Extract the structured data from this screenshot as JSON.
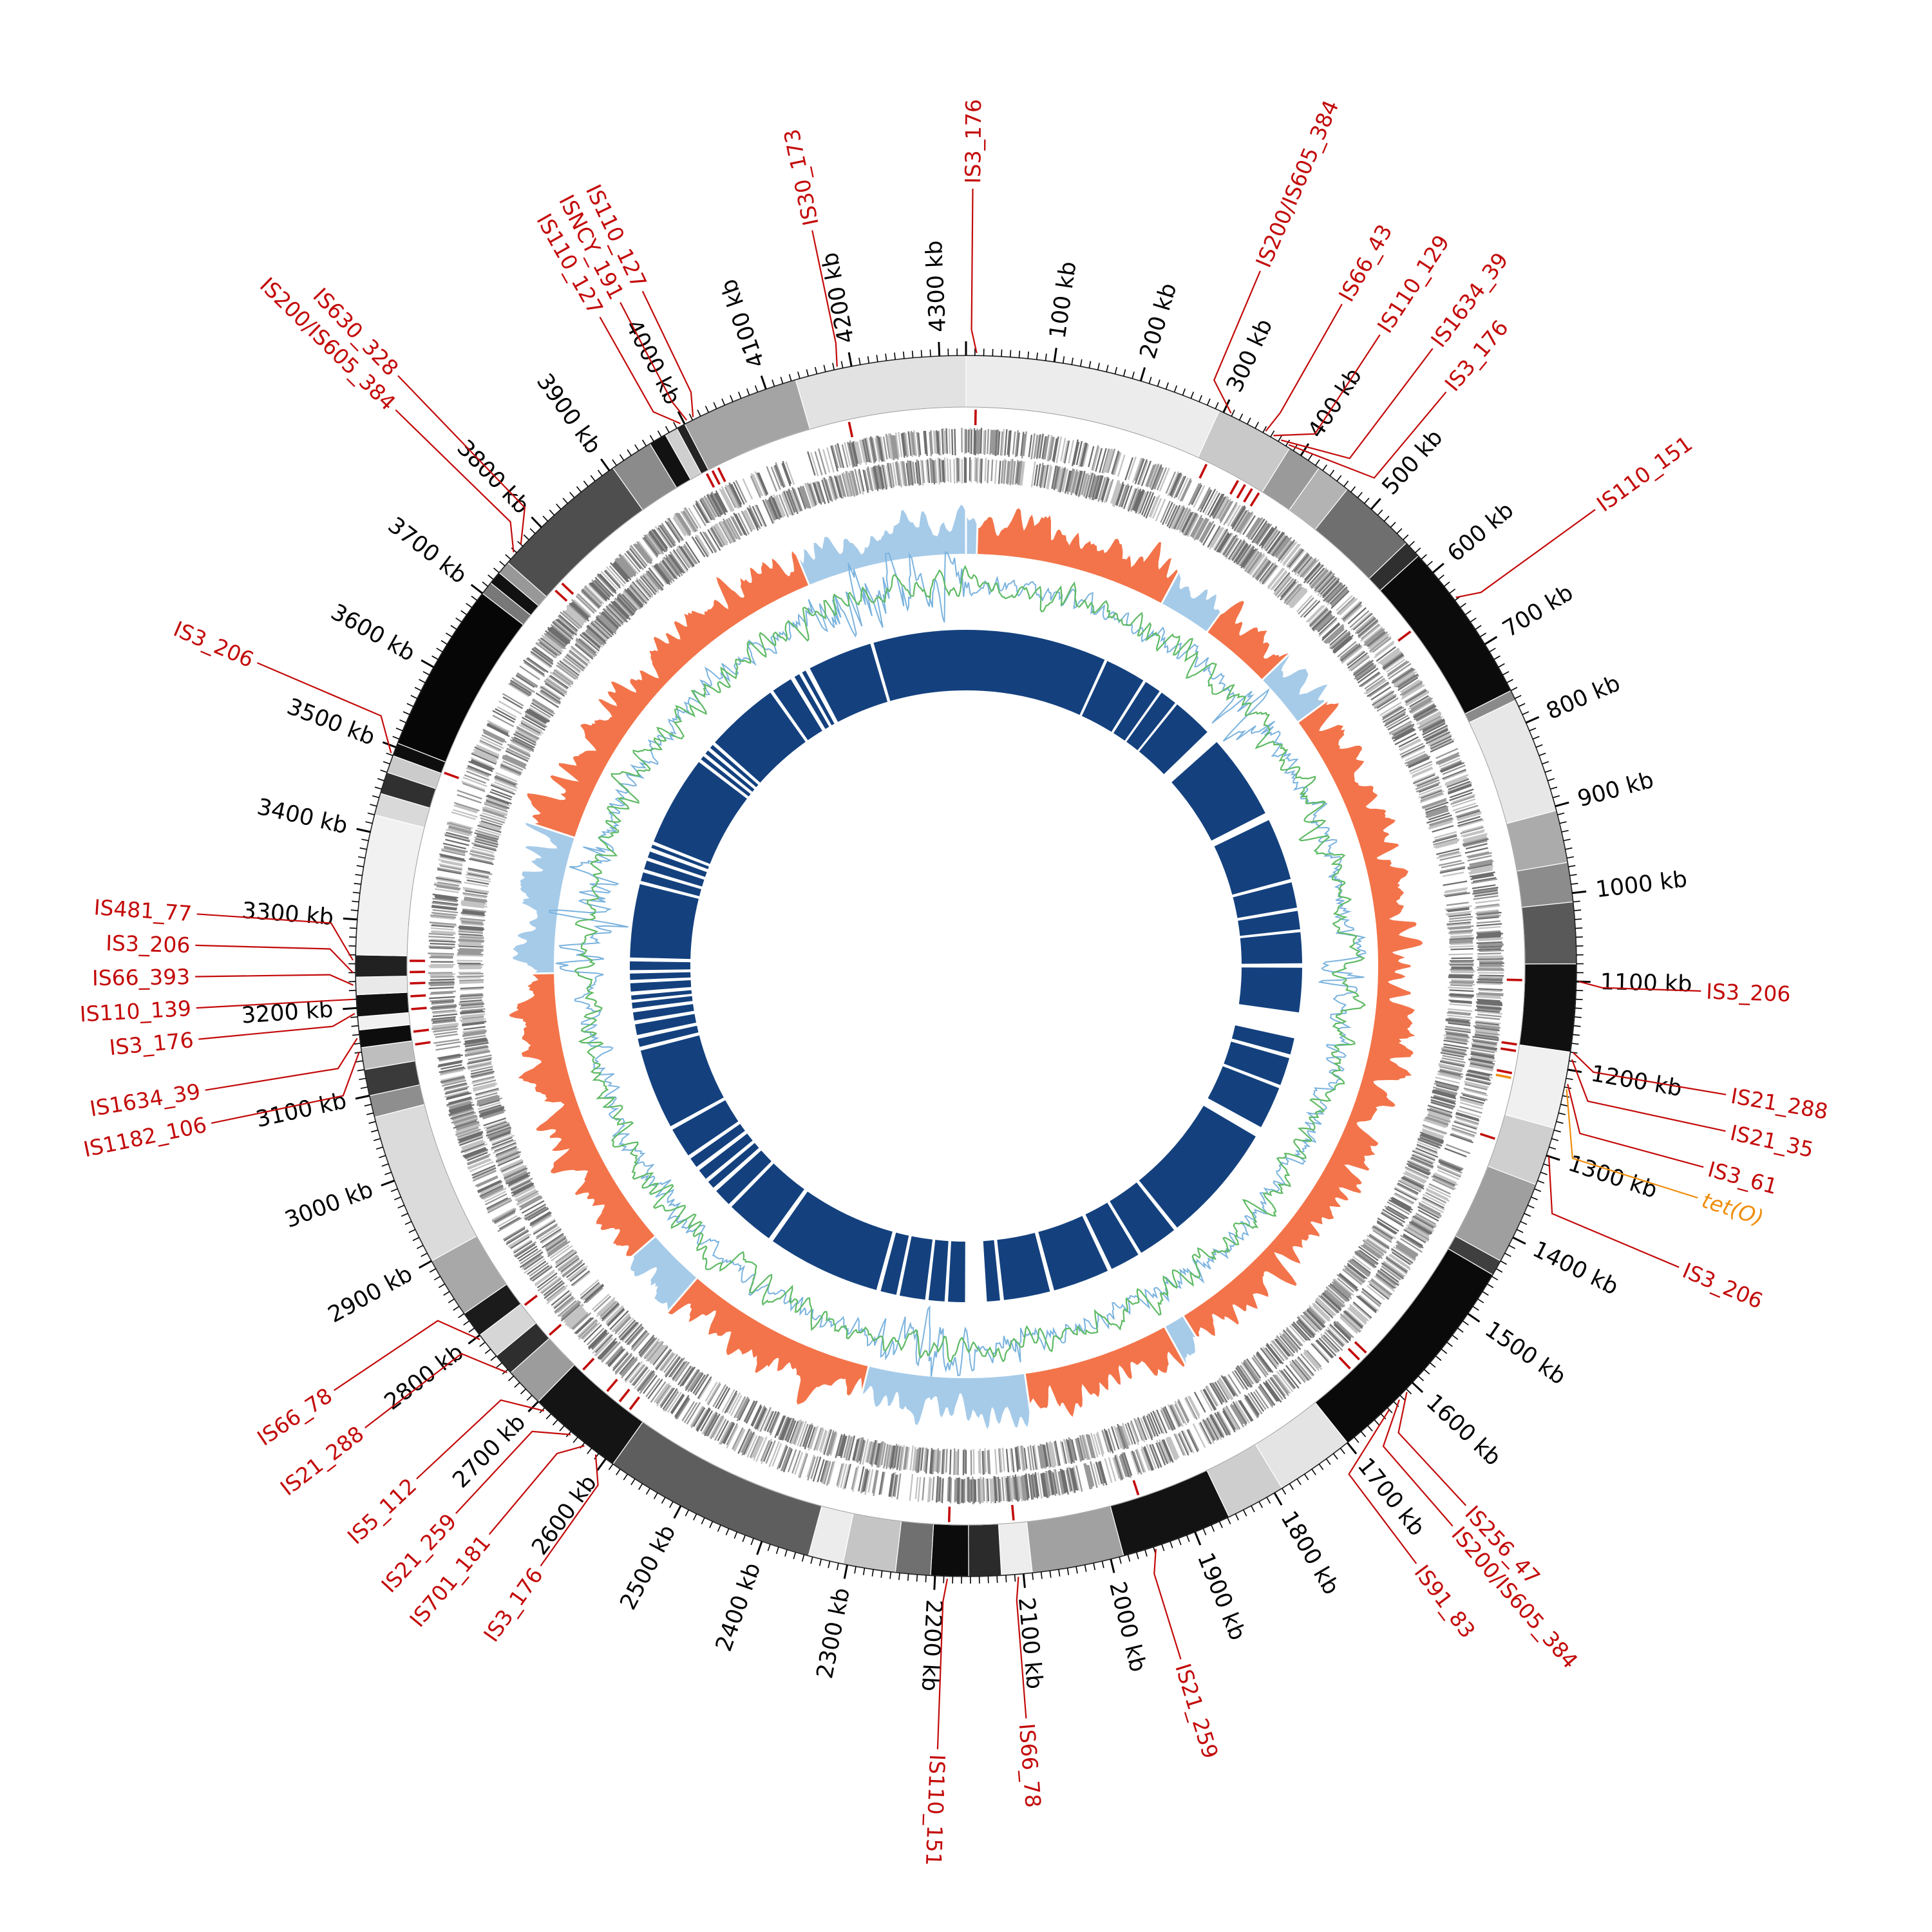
{
  "figure": {
    "kind": "circular-genome-plot",
    "background": "#ffffff"
  },
  "chart_data": {
    "type": "circos",
    "genome_length_kb": 4330,
    "axis": {
      "unit_suffix": " kb",
      "tick_minor_kb": 10,
      "tick_major_kb": 100,
      "label_color": "#000000",
      "labels_kb": [
        100,
        200,
        300,
        400,
        500,
        600,
        700,
        800,
        900,
        1000,
        1100,
        1200,
        1300,
        1400,
        1500,
        1600,
        1700,
        1800,
        1900,
        2000,
        2100,
        2200,
        2300,
        2400,
        2500,
        2600,
        2700,
        2800,
        2900,
        3000,
        3100,
        3200,
        3300,
        3400,
        3500,
        3600,
        3700,
        3800,
        3900,
        4000,
        4100,
        4200,
        4300
      ]
    },
    "karyotype_segments": [
      [
        0,
        295,
        "#ececec"
      ],
      [
        295,
        385,
        "#c9c9c9"
      ],
      [
        385,
        425,
        "#9a9a9a"
      ],
      [
        425,
        465,
        "#b3b3b3"
      ],
      [
        465,
        555,
        "#6f6f6f"
      ],
      [
        555,
        575,
        "#2f2f2f"
      ],
      [
        575,
        760,
        "#0b0b0b"
      ],
      [
        760,
        772,
        "#8a8a8a"
      ],
      [
        772,
        905,
        "#e7e7e7"
      ],
      [
        905,
        965,
        "#ababab"
      ],
      [
        965,
        1010,
        "#8c8c8c"
      ],
      [
        1010,
        1080,
        "#595959"
      ],
      [
        1080,
        1180,
        "#101010"
      ],
      [
        1180,
        1268,
        "#f0f0f0"
      ],
      [
        1268,
        1335,
        "#cfcfcf"
      ],
      [
        1335,
        1430,
        "#9f9f9f"
      ],
      [
        1430,
        1448,
        "#3f3f3f"
      ],
      [
        1448,
        1700,
        "#0a0a0a"
      ],
      [
        1700,
        1790,
        "#e4e4e4"
      ],
      [
        1790,
        1858,
        "#cecece"
      ],
      [
        1858,
        1985,
        "#131313"
      ],
      [
        1985,
        2090,
        "#a1a1a1"
      ],
      [
        2090,
        2125,
        "#ededed"
      ],
      [
        2125,
        2162,
        "#2b2b2b"
      ],
      [
        2162,
        2205,
        "#0c0c0c"
      ],
      [
        2205,
        2245,
        "#707070"
      ],
      [
        2245,
        2305,
        "#c5c5c5"
      ],
      [
        2305,
        2345,
        "#ececec"
      ],
      [
        2345,
        2590,
        "#5e5e5e"
      ],
      [
        2590,
        2700,
        "#141414"
      ],
      [
        2700,
        2745,
        "#9c9c9c"
      ],
      [
        2745,
        2770,
        "#2e2e2e"
      ],
      [
        2770,
        2800,
        "#d6d6d6"
      ],
      [
        2800,
        2830,
        "#1b1b1b"
      ],
      [
        2830,
        2900,
        "#a8a8a8"
      ],
      [
        2900,
        3075,
        "#dbdbdb"
      ],
      [
        3075,
        3100,
        "#8e8e8e"
      ],
      [
        3100,
        3130,
        "#3a3a3a"
      ],
      [
        3130,
        3155,
        "#bebebe"
      ],
      [
        3155,
        3175,
        "#0d0d0d"
      ],
      [
        3175,
        3190,
        "#f0f0f0"
      ],
      [
        3190,
        3215,
        "#121212"
      ],
      [
        3215,
        3235,
        "#e9e9e9"
      ],
      [
        3235,
        3260,
        "#212121"
      ],
      [
        3260,
        3420,
        "#f1f1f1"
      ],
      [
        3420,
        3445,
        "#d9d9d9"
      ],
      [
        3445,
        3470,
        "#303030"
      ],
      [
        3470,
        3490,
        "#cbcbcb"
      ],
      [
        3490,
        3505,
        "#0e0e0e"
      ],
      [
        3505,
        3700,
        "#060606"
      ],
      [
        3700,
        3715,
        "#787878"
      ],
      [
        3715,
        3730,
        "#111111"
      ],
      [
        3730,
        3745,
        "#989898"
      ],
      [
        3745,
        3905,
        "#4e4e4e"
      ],
      [
        3905,
        3955,
        "#8b8b8b"
      ],
      [
        3955,
        3975,
        "#121212"
      ],
      [
        3975,
        3990,
        "#cfcfcf"
      ],
      [
        3990,
        4000,
        "#232323"
      ],
      [
        4000,
        4135,
        "#a4a4a4"
      ],
      [
        4135,
        4330,
        "#e2e2e2"
      ]
    ],
    "genes": {
      "bands": [
        [
          793,
          836
        ],
        [
          749,
          791
        ]
      ],
      "shades": [
        "#6e6e6e",
        "#989898",
        "#c3c3c3"
      ]
    },
    "gc_skew": {
      "r_in": 640,
      "r_out": 746,
      "positive_color": "#f3744a",
      "negative_color": "#a6cbe9",
      "negative_regions": [
        [
          4060,
          4330
        ],
        [
          0,
          18
        ],
        [
          340,
          430
        ],
        [
          553,
          645
        ],
        [
          1782,
          1818
        ],
        [
          2065,
          2330
        ],
        [
          2655,
          2755
        ],
        [
          3235,
          3465
        ]
      ]
    },
    "gc_content": {
      "r_base": 590,
      "green_color": "#5fba64",
      "blue_color": "#7bb3de",
      "spike_regions": [
        [
          545,
          650
        ],
        [
          1000,
          1120
        ],
        [
          2060,
          2340
        ],
        [
          3230,
          3470
        ],
        [
          4050,
          4330
        ]
      ]
    },
    "alignment_ring": {
      "r_in": 428,
      "r_out": 522,
      "color": "#14417e",
      "gaps_kb": [
        [
          293,
          299
        ],
        [
          383,
          389
        ],
        [
          423,
          428
        ],
        [
          463,
          468
        ],
        [
          552,
          580
        ],
        [
          757,
          773
        ],
        [
          902,
          909
        ],
        [
          962,
          969
        ],
        [
          1007,
          1013
        ],
        [
          1077,
          1086
        ],
        [
          1178,
          1232
        ],
        [
          1266,
          1274
        ],
        [
          1332,
          1339
        ],
        [
          1427,
          1449
        ],
        [
          1697,
          1705
        ],
        [
          1787,
          1794
        ],
        [
          1856,
          1865
        ],
        [
          1982,
          1991
        ],
        [
          2087,
          2095
        ],
        [
          2122,
          2167
        ],
        [
          2202,
          2209
        ],
        [
          2242,
          2249
        ],
        [
          2302,
          2309
        ],
        [
          2342,
          2351
        ],
        [
          2587,
          2597
        ],
        [
          2697,
          2705
        ],
        [
          2742,
          2751
        ],
        [
          2767,
          2775
        ],
        [
          2797,
          2806
        ],
        [
          2827,
          2835
        ],
        [
          2897,
          2905
        ],
        [
          3072,
          3080
        ],
        [
          3097,
          3105
        ],
        [
          3127,
          3135
        ],
        [
          3152,
          3160
        ],
        [
          3172,
          3178
        ],
        [
          3187,
          3195
        ],
        [
          3212,
          3219
        ],
        [
          3232,
          3239
        ],
        [
          3257,
          3265
        ],
        [
          3417,
          3424
        ],
        [
          3442,
          3449
        ],
        [
          3467,
          3474
        ],
        [
          3487,
          3495
        ],
        [
          3502,
          3509
        ],
        [
          3697,
          3704
        ],
        [
          3712,
          3719
        ],
        [
          3727,
          3734
        ],
        [
          3742,
          3749
        ],
        [
          3902,
          3909
        ],
        [
          3952,
          3961
        ],
        [
          3972,
          3979
        ],
        [
          3987,
          3997
        ],
        [
          4131,
          4138
        ]
      ]
    },
    "is_annotations": {
      "label_color": "#c30a0a",
      "items": [
        {
          "label": "IS3_176",
          "kb": 12,
          "label_kb": 6,
          "r": 1215
        },
        {
          "label": "IS200/IS605_384",
          "kb": 308,
          "label_kb": 276,
          "r": 1180
        },
        {
          "label": "IS66_43",
          "kb": 352,
          "label_kb": 356,
          "r": 1190
        },
        {
          "label": "IS110_129",
          "kb": 362,
          "label_kb": 400,
          "r": 1180
        },
        {
          "label": "IS1634_39",
          "kb": 372,
          "label_kb": 446,
          "r": 1210
        },
        {
          "label": "IS3_176",
          "kb": 382,
          "label_kb": 480,
          "r": 1170
        },
        {
          "label": "IS110_151",
          "kb": 638,
          "label_kb": 650,
          "r": 1215
        },
        {
          "label": "IS3_206",
          "kb": 1100,
          "label_kb": 1106,
          "r": 1150
        },
        {
          "label": "IS21_288",
          "kb": 1180,
          "label_kb": 1198,
          "r": 1205
        },
        {
          "label": "IS21_35",
          "kb": 1188,
          "label_kb": 1230,
          "r": 1215
        },
        {
          "label": "IS3_61",
          "kb": 1216,
          "label_kb": 1266,
          "r": 1195
        },
        {
          "label": "IS3_206",
          "kb": 1300,
          "label_kb": 1358,
          "r": 1210
        },
        {
          "label": "IS256_47",
          "kb": 1612,
          "label_kb": 1650,
          "r": 1150
        },
        {
          "label": "IS200/IS605_384",
          "kb": 1624,
          "label_kb": 1672,
          "r": 1160
        },
        {
          "label": "IS91_83",
          "kb": 1640,
          "label_kb": 1720,
          "r": 1170
        },
        {
          "label": "IS21_259",
          "kb": 1948,
          "label_kb": 1958,
          "r": 1135
        },
        {
          "label": "IS66_78",
          "kb": 2106,
          "label_kb": 2110,
          "r": 1180
        },
        {
          "label": "IS110_151",
          "kb": 2186,
          "label_kb": 2190,
          "r": 1225
        },
        {
          "label": "IS3_176",
          "kb": 2612,
          "label_kb": 2590,
          "r": 1150
        },
        {
          "label": "IS701_181",
          "kb": 2628,
          "label_kb": 2646,
          "r": 1160
        },
        {
          "label": "IS21_259",
          "kb": 2648,
          "label_kb": 2682,
          "r": 1170
        },
        {
          "label": "IS5_112",
          "kb": 2688,
          "label_kb": 2730,
          "r": 1175
        },
        {
          "label": "IS21_288",
          "kb": 2748,
          "label_kb": 2796,
          "r": 1185
        },
        {
          "label": "IS66_78",
          "kb": 2796,
          "label_kb": 2840,
          "r": 1190
        },
        {
          "label": "IS1182_106",
          "kb": 3150,
          "label_kb": 3106,
          "r": 1205
        },
        {
          "label": "IS1634_39",
          "kb": 3166,
          "label_kb": 3136,
          "r": 1205
        },
        {
          "label": "IS3_176",
          "kb": 3194,
          "label_kb": 3182,
          "r": 1205
        },
        {
          "label": "IS110_139",
          "kb": 3210,
          "label_kb": 3210,
          "r": 1205
        },
        {
          "label": "IS66_393",
          "kb": 3226,
          "label_kb": 3238,
          "r": 1205
        },
        {
          "label": "IS3_206",
          "kb": 3240,
          "label_kb": 3266,
          "r": 1205
        },
        {
          "label": "IS481_77",
          "kb": 3254,
          "label_kb": 3294,
          "r": 1205
        },
        {
          "label": "IS3_206",
          "kb": 3492,
          "label_kb": 3526,
          "r": 1205
        },
        {
          "label": "IS200/IS605_384",
          "kb": 3758,
          "label_kb": 3780,
          "r": 1245
        },
        {
          "label": "IS630_328",
          "kb": 3770,
          "label_kb": 3802,
          "r": 1280
        },
        {
          "label": "IS110_127",
          "kb": 3996,
          "label_kb": 3976,
          "r": 1165
        },
        {
          "label": "ISNCY_191",
          "kb": 4004,
          "label_kb": 3999,
          "r": 1170
        },
        {
          "label": "IS110_127",
          "kb": 4012,
          "label_kb": 4022,
          "r": 1170
        },
        {
          "label": "IS30_173",
          "kb": 4184,
          "label_kb": 4188,
          "r": 1175
        }
      ]
    },
    "gene_annotations": [
      {
        "label": "tet(O)",
        "kb": 1222,
        "label_kb": 1294,
        "r": 1200,
        "color": "#ef8e0e"
      }
    ]
  }
}
